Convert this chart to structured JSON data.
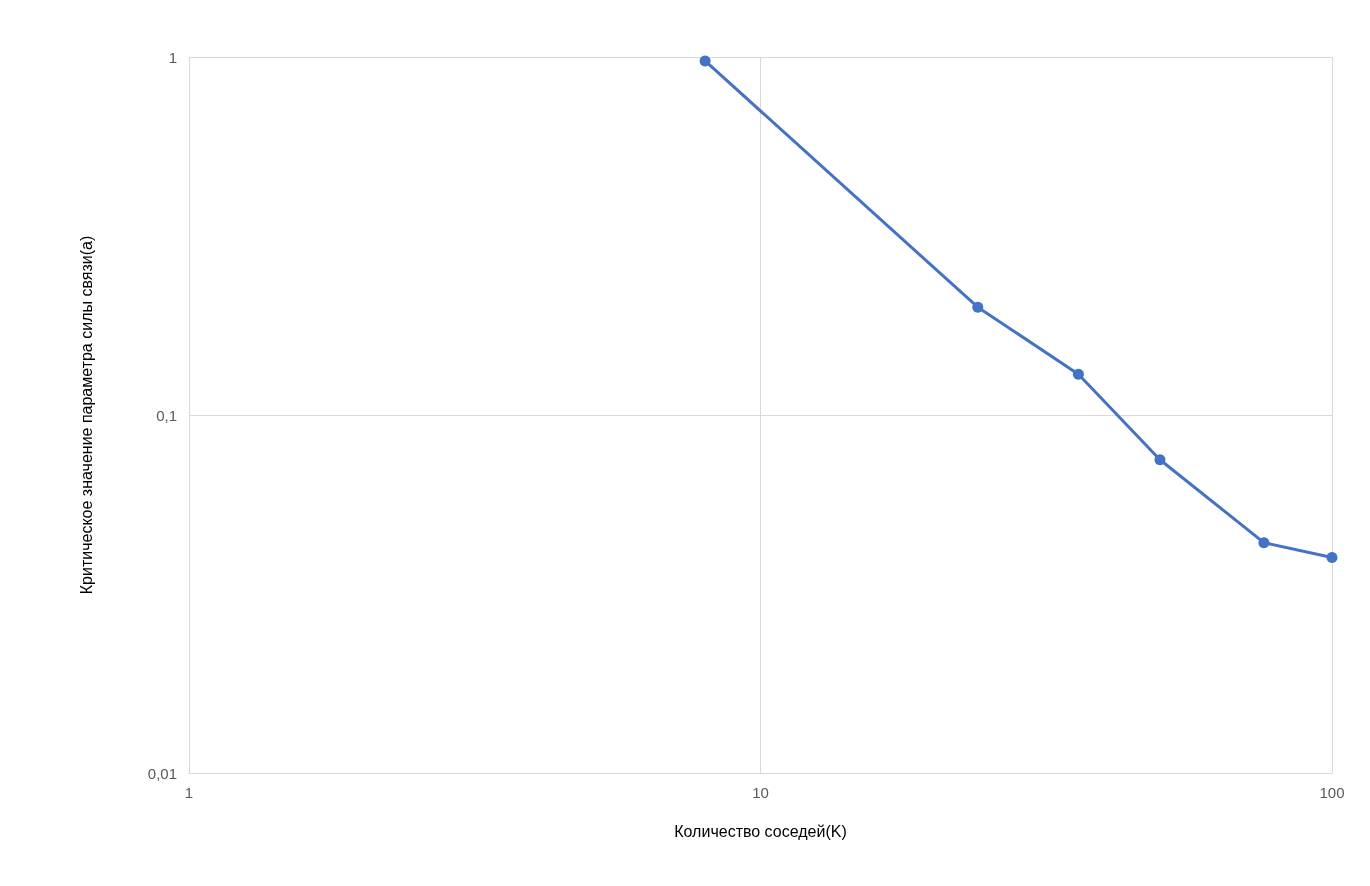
{
  "chart_data": {
    "type": "line",
    "xlabel": "Количество соседей(K)",
    "ylabel": "Критическое значение параметра силы связи(a)",
    "x": [
      8,
      24,
      36,
      50,
      76,
      100
    ],
    "series": [
      {
        "color": "#4472c4",
        "values": [
          0.975,
          0.2,
          0.13,
          0.075,
          0.044,
          0.04
        ]
      }
    ],
    "log": "xy",
    "xlim": [
      1,
      100
    ],
    "xticks": [
      1,
      10,
      100
    ],
    "ylim": [
      0.01,
      1
    ],
    "yticks": [
      {
        "value": 0.01,
        "label": "0,01"
      },
      {
        "value": 0.1,
        "label": "0,1"
      },
      1
    ],
    "grid": true,
    "marker": "circle",
    "line_style": "solid"
  }
}
